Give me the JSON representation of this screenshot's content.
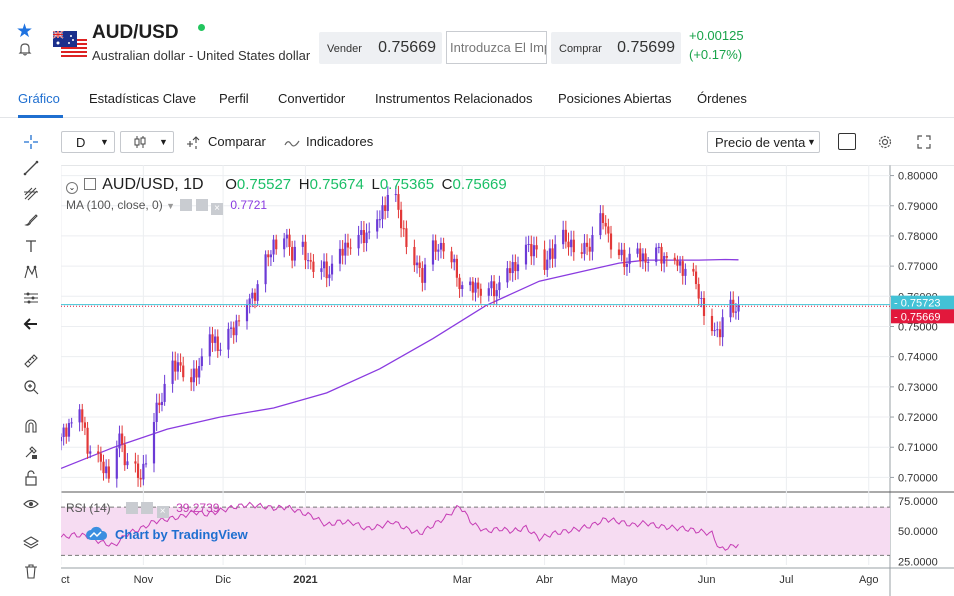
{
  "instrument": {
    "symbol": "AUD/USD",
    "description": "Australian dollar - United States dollar",
    "sell_label": "Vender",
    "sell_price": "0.75669",
    "qty_placeholder": "Introduzca El Importe",
    "buy_label": "Comprar",
    "buy_price": "0.75699",
    "change_abs": "+0.00125",
    "change_pct": "(+0.17%)"
  },
  "tabs": [
    {
      "label": "Gráfico",
      "active": true
    },
    {
      "label": "Estadísticas Clave"
    },
    {
      "label": "Perfil"
    },
    {
      "label": "Convertidor"
    },
    {
      "label": "Instrumentos Relacionados"
    },
    {
      "label": "Posiciones Abiertas"
    },
    {
      "label": "Órdenes"
    }
  ],
  "left_tools": [
    "crosshair-icon",
    "trend-line-icon",
    "fib-icon",
    "brush-icon",
    "text-icon",
    "pattern-icon",
    "prediction-icon",
    "back-arrow-icon",
    "ruler-icon",
    "zoom-in-icon",
    "magnet-icon",
    "lock-drawing-icon",
    "lock-icon",
    "eye-icon",
    "layers-icon",
    "trash-icon"
  ],
  "toolbar": {
    "interval": "D",
    "compare": "Comparar",
    "indicators": "Indicadores",
    "price_type": "Precio de venta"
  },
  "legend": {
    "title": "AUD/USD, 1D",
    "o_label": "O",
    "o": "0.75527",
    "h_label": "H",
    "h": "0.75674",
    "l_label": "L",
    "l": "0.75365",
    "c_label": "C",
    "c": "0.75669",
    "ma_label": "MA (100, close, 0)",
    "ma_value": "0.7721",
    "rsi_label": "RSI (14)",
    "rsi_value": "39.2739"
  },
  "watermark": "Chart by TradingView",
  "colors": {
    "up": "#6b3ad6",
    "down": "#e23838",
    "ma": "#8a3be0",
    "rsi": "#c63db5",
    "rsi_band": "#f6dcf2",
    "bid_line": "#43c2d6",
    "last_tag": "#e2183c",
    "accent": "#1f6fd0",
    "positive": "#18a34a"
  },
  "chart_data": {
    "type": "candlestick",
    "y_axis": {
      "ticks": [
        "0.80000",
        "0.79000",
        "0.78000",
        "0.77000",
        "0.76000",
        "0.75000",
        "0.74000",
        "0.73000",
        "0.72000",
        "0.71000",
        "0.70000"
      ],
      "ylim": [
        0.6955,
        0.8035
      ]
    },
    "price_tags": [
      {
        "label": "0.75723",
        "value": 0.75723,
        "color": "#43c2d6"
      },
      {
        "label": "0.75669",
        "value": 0.75669,
        "color": "#e2183c"
      }
    ],
    "rsi_axis": {
      "ticks": [
        "75.0000",
        "50.0000",
        "25.0000"
      ],
      "ylim": [
        22,
        80
      ],
      "band": [
        30,
        70
      ]
    },
    "x_ticks": [
      "Oct",
      "Nov",
      "Dic",
      "2021",
      "Mar",
      "Abr",
      "Mayo",
      "Jun",
      "Jul",
      "Ago"
    ],
    "x_tick_days": [
      0,
      31,
      61,
      92,
      151,
      182,
      212,
      243,
      273,
      304
    ],
    "x_range_days": [
      0,
      312
    ],
    "candle_anchors_days": [
      0,
      3,
      7,
      10,
      14,
      18,
      22,
      26,
      30,
      34,
      37,
      41,
      45,
      49,
      53,
      56,
      60,
      64,
      68,
      72,
      76,
      80,
      84,
      87,
      90,
      93,
      96,
      100,
      104,
      108,
      112,
      116,
      120,
      124,
      128,
      132,
      136,
      140,
      144,
      148,
      152,
      156,
      160,
      164,
      168,
      172,
      176,
      180,
      182,
      184,
      188,
      192,
      196,
      200,
      204,
      208,
      212,
      216,
      220,
      224,
      228,
      232,
      236,
      240,
      243,
      246,
      248,
      250,
      252,
      255
    ],
    "close_anchors": [
      0.712,
      0.718,
      0.722,
      0.711,
      0.705,
      0.702,
      0.713,
      0.702,
      0.7,
      0.716,
      0.725,
      0.735,
      0.738,
      0.731,
      0.74,
      0.746,
      0.744,
      0.748,
      0.755,
      0.76,
      0.768,
      0.778,
      0.78,
      0.775,
      0.776,
      0.772,
      0.771,
      0.768,
      0.772,
      0.778,
      0.779,
      0.782,
      0.786,
      0.797,
      0.785,
      0.772,
      0.768,
      0.775,
      0.778,
      0.77,
      0.76,
      0.764,
      0.762,
      0.763,
      0.768,
      0.772,
      0.776,
      0.777,
      0.769,
      0.775,
      0.779,
      0.778,
      0.775,
      0.779,
      0.786,
      0.776,
      0.772,
      0.774,
      0.773,
      0.775,
      0.773,
      0.771,
      0.769,
      0.762,
      0.752,
      0.748,
      0.75,
      0.754,
      0.7555,
      0.75669
    ],
    "ma_anchors_days": [
      0,
      20,
      40,
      60,
      80,
      100,
      120,
      140,
      160,
      180,
      200,
      210,
      220,
      240,
      250,
      255
    ],
    "ma_values": [
      0.703,
      0.71,
      0.716,
      0.72,
      0.723,
      0.728,
      0.736,
      0.746,
      0.757,
      0.765,
      0.769,
      0.771,
      0.772,
      0.772,
      0.7722,
      0.7721
    ],
    "rsi_anchors_days": [
      0,
      5,
      10,
      15,
      20,
      25,
      30,
      35,
      40,
      45,
      50,
      55,
      60,
      65,
      70,
      75,
      80,
      85,
      90,
      95,
      100,
      105,
      110,
      115,
      120,
      125,
      130,
      135,
      140,
      145,
      150,
      155,
      160,
      165,
      170,
      175,
      180,
      185,
      190,
      195,
      200,
      205,
      210,
      215,
      220,
      225,
      230,
      235,
      240,
      245,
      248,
      252,
      255
    ],
    "rsi_values": [
      45,
      47,
      46,
      41,
      38,
      48,
      52,
      58,
      60,
      62,
      66,
      64,
      67,
      70,
      72,
      71,
      69,
      70,
      66,
      62,
      55,
      58,
      57,
      52,
      54,
      58,
      52,
      48,
      55,
      62,
      71,
      56,
      50,
      52,
      50,
      53,
      44,
      48,
      50,
      52,
      55,
      60,
      58,
      55,
      57,
      54,
      53,
      52,
      50,
      48,
      35,
      37,
      39.27
    ]
  }
}
